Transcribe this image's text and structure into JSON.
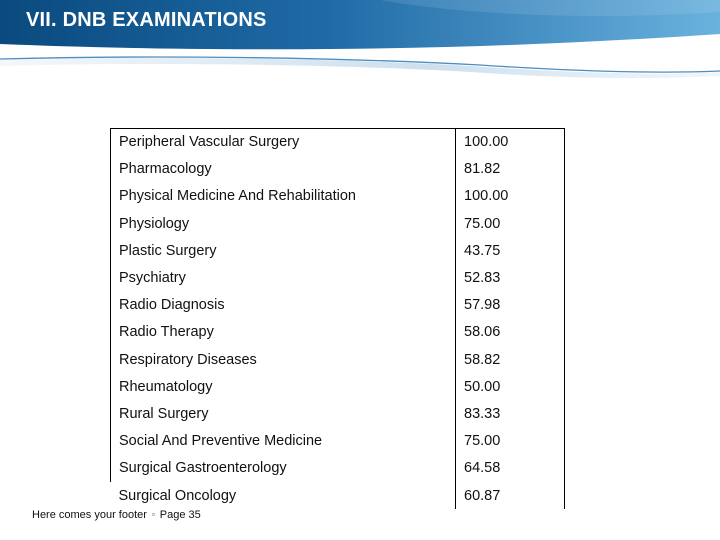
{
  "slide": {
    "title": "VII. DNB EXAMINATIONS",
    "colors": {
      "banner_dark": "#0a4a7e",
      "banner_light": "#6ab2de",
      "accent_line": "#2f79b4"
    }
  },
  "table": {
    "rows": [
      {
        "subject": "Peripheral Vascular Surgery",
        "value": "100.00"
      },
      {
        "subject": "Pharmacology",
        "value": "81.82"
      },
      {
        "subject": "Physical Medicine And Rehabilitation",
        "value": "100.00"
      },
      {
        "subject": "Physiology",
        "value": "75.00"
      },
      {
        "subject": "Plastic Surgery",
        "value": "43.75"
      },
      {
        "subject": "Psychiatry",
        "value": "52.83"
      },
      {
        "subject": "Radio Diagnosis",
        "value": "57.98"
      },
      {
        "subject": "Radio Therapy",
        "value": "58.06"
      },
      {
        "subject": "Respiratory Diseases",
        "value": "58.82"
      },
      {
        "subject": "Rheumatology",
        "value": "50.00"
      },
      {
        "subject": "Rural Surgery",
        "value": "83.33"
      },
      {
        "subject": "Social And Preventive Medicine",
        "value": "75.00"
      },
      {
        "subject": "Surgical Gastroenterology",
        "value": "64.58"
      },
      {
        "subject": "Surgical Oncology",
        "value": "60.87"
      }
    ]
  },
  "footer": {
    "text": "Here comes your footer",
    "separator": "▫",
    "page_label": "Page 35"
  }
}
